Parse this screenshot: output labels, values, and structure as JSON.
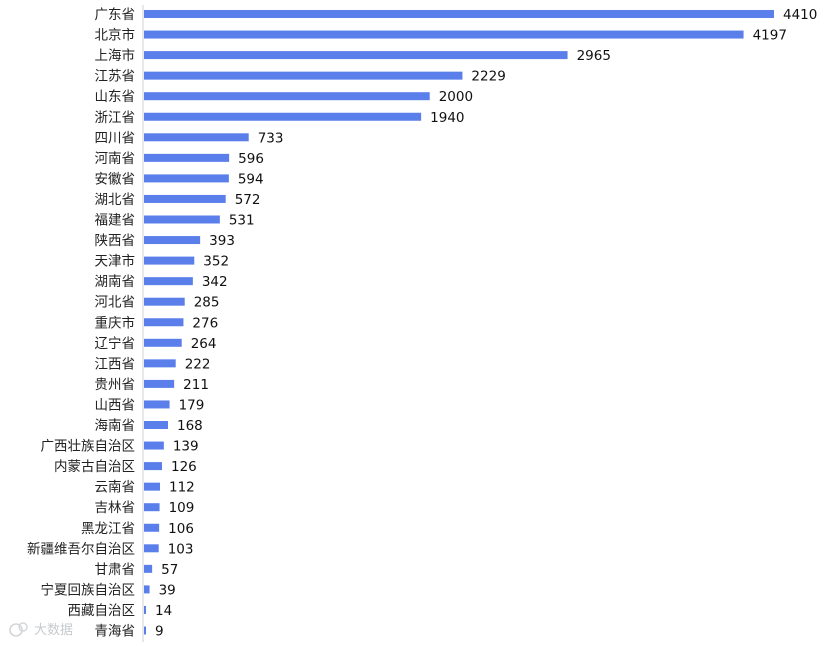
{
  "chart_data": {
    "type": "bar",
    "orientation": "horizontal",
    "categories": [
      "广东省",
      "北京市",
      "上海市",
      "江苏省",
      "山东省",
      "浙江省",
      "四川省",
      "河南省",
      "安徽省",
      "湖北省",
      "福建省",
      "陕西省",
      "天津市",
      "湖南省",
      "河北省",
      "重庆市",
      "辽宁省",
      "江西省",
      "贵州省",
      "山西省",
      "海南省",
      "广西壮族自治区",
      "内蒙古自治区",
      "云南省",
      "吉林省",
      "黑龙江省",
      "新疆维吾尔自治区",
      "甘肃省",
      "宁夏回族自治区",
      "西藏自治区",
      "青海省"
    ],
    "values": [
      4410,
      4197,
      2965,
      2229,
      2000,
      1940,
      733,
      596,
      594,
      572,
      531,
      393,
      352,
      342,
      285,
      276,
      264,
      222,
      211,
      179,
      168,
      139,
      126,
      112,
      109,
      106,
      103,
      57,
      39,
      14,
      9
    ],
    "title": "",
    "xlabel": "",
    "ylabel": "",
    "xlim": [
      0,
      4410
    ],
    "grid": false,
    "legend": "none",
    "bar_color": "#5b7fea",
    "show_value_labels": true
  },
  "watermark": {
    "text": "大数据"
  }
}
